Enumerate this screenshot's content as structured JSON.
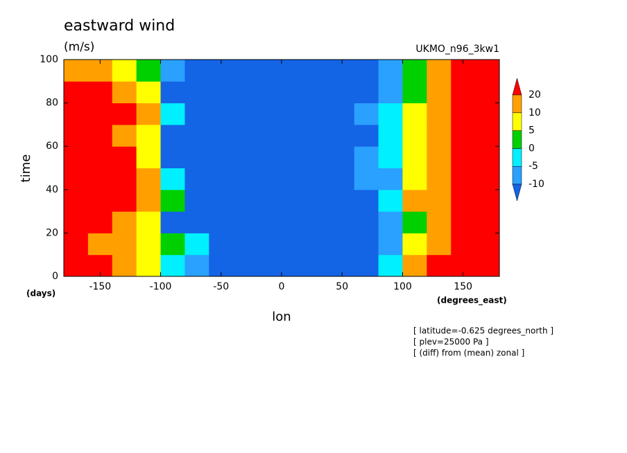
{
  "chart_data": {
    "type": "contourf",
    "title": "eastward wind",
    "units": "(m/s)",
    "model": "UKMO_n96_3kw1",
    "xlabel": "lon",
    "ylabel": "time",
    "ylabel_units": "(days)",
    "xlabel_units": "(degrees_east)",
    "notes": [
      "[ latitude=-0.625 degrees_north ]",
      "[ plev=25000 Pa ]",
      "[ (diff) from (mean) zonal ]"
    ],
    "xlim": [
      -180,
      180
    ],
    "ylim": [
      0,
      100
    ],
    "xticks": [
      -150,
      -100,
      -50,
      0,
      50,
      100,
      150
    ],
    "yticks": [
      0,
      20,
      40,
      60,
      80,
      100
    ],
    "levels": [
      -10,
      -5,
      0,
      5,
      10,
      20
    ],
    "colors": [
      "#1464e6",
      "#2aa0ff",
      "#00f0ff",
      "#00d000",
      "#ffff00",
      "#ffa000",
      "#ff0000"
    ],
    "x": [
      -170,
      -150,
      -130,
      -110,
      -90,
      -70,
      -50,
      -30,
      -10,
      10,
      30,
      50,
      70,
      90,
      110,
      130,
      150,
      170
    ],
    "y": [
      5,
      15,
      25,
      35,
      45,
      55,
      65,
      75,
      85,
      95
    ],
    "z": [
      [
        25,
        25,
        15,
        8,
        -2,
        -8,
        -15,
        -15,
        -15,
        -15,
        -15,
        -15,
        -12,
        -3,
        12,
        25,
        25,
        22
      ],
      [
        22,
        18,
        12,
        8,
        2,
        -5,
        -15,
        -15,
        -15,
        -15,
        -15,
        -15,
        -12,
        -8,
        5,
        15,
        22,
        25
      ],
      [
        25,
        25,
        15,
        6,
        -12,
        -15,
        -15,
        -15,
        -15,
        -15,
        -15,
        -15,
        -15,
        -8,
        2,
        15,
        25,
        25
      ],
      [
        25,
        25,
        22,
        12,
        2,
        -12,
        -15,
        -15,
        -15,
        -15,
        -15,
        -15,
        -12,
        -3,
        12,
        18,
        25,
        25
      ],
      [
        25,
        25,
        22,
        12,
        -5,
        -15,
        -15,
        -15,
        -15,
        -15,
        -15,
        -15,
        -10,
        -6,
        5,
        15,
        25,
        25
      ],
      [
        25,
        25,
        22,
        8,
        -12,
        -15,
        -15,
        -15,
        -15,
        -15,
        -15,
        -12,
        -8,
        -3,
        8,
        15,
        22,
        25
      ],
      [
        25,
        25,
        15,
        5,
        -12,
        -15,
        -15,
        -15,
        -15,
        -15,
        -15,
        -15,
        -12,
        -5,
        8,
        12,
        25,
        25
      ],
      [
        25,
        25,
        22,
        12,
        -3,
        -15,
        -15,
        -15,
        -15,
        -15,
        -15,
        -15,
        -10,
        -3,
        8,
        15,
        25,
        25
      ],
      [
        25,
        25,
        15,
        6,
        -12,
        -15,
        -15,
        -15,
        -15,
        -15,
        -15,
        -15,
        -12,
        -8,
        2,
        12,
        25,
        25
      ],
      [
        15,
        12,
        8,
        2,
        -8,
        -15,
        -15,
        -15,
        -15,
        -15,
        -15,
        -15,
        -15,
        -8,
        2,
        12,
        25,
        25
      ]
    ]
  }
}
